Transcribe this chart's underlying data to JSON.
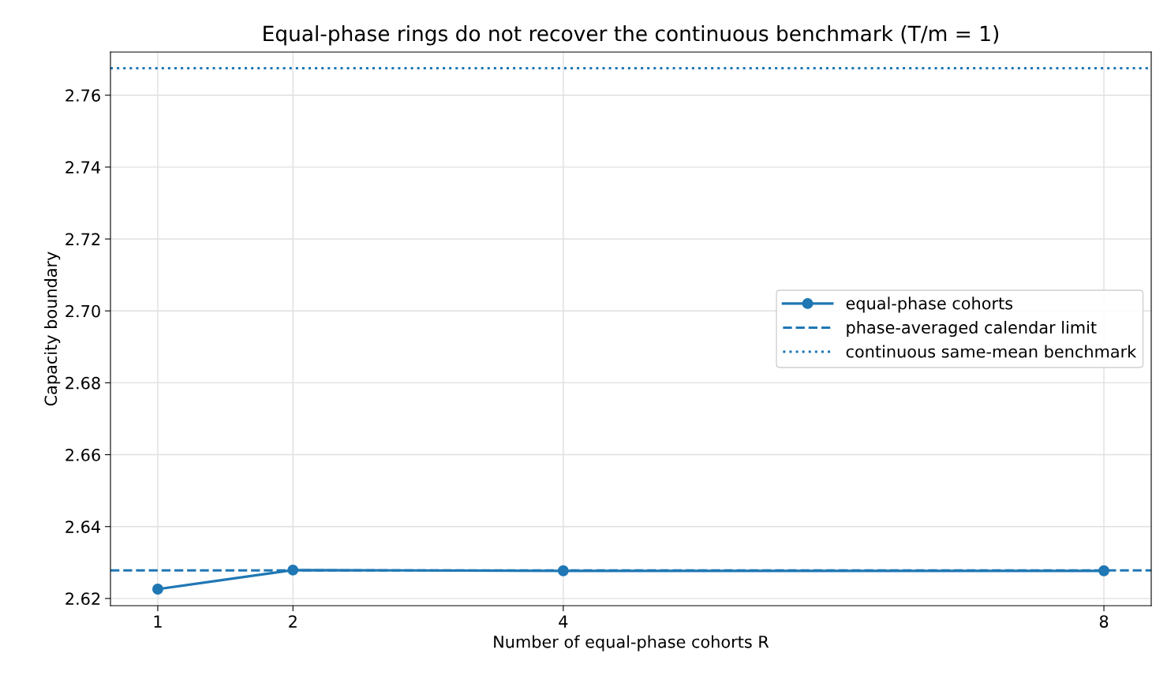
{
  "chart_data": {
    "type": "line",
    "title": "Equal-phase rings do not recover the continuous benchmark (T/m = 1)",
    "xlabel": "Number of equal-phase cohorts R",
    "ylabel": "Capacity boundary",
    "x": [
      1,
      2,
      4,
      8
    ],
    "series": [
      {
        "name": "equal-phase cohorts",
        "color": "#1f77b4",
        "values": [
          2.6226,
          2.6279,
          2.6277,
          2.6277
        ]
      }
    ],
    "ref_lines": [
      {
        "axis": "y",
        "value": 2.6278,
        "label": "phase-averaged calendar limit",
        "color": "#1f77b4",
        "line_style": "dashed"
      },
      {
        "axis": "y",
        "value": 2.7675,
        "label": "continuous same-mean benchmark",
        "color": "#1f77b4",
        "line_style": "dotted"
      }
    ],
    "xlim": [
      0.65,
      8.35
    ],
    "xticks": [
      1,
      2,
      4,
      8
    ],
    "ylim": [
      2.618,
      2.772
    ],
    "yticks": [
      2.62,
      2.64,
      2.66,
      2.68,
      {
        "value": 2.7,
        "label": "2.70"
      },
      2.72,
      2.74,
      2.76
    ],
    "grid": true,
    "legend": "center right",
    "marker": "circle",
    "line_style": "solid"
  }
}
